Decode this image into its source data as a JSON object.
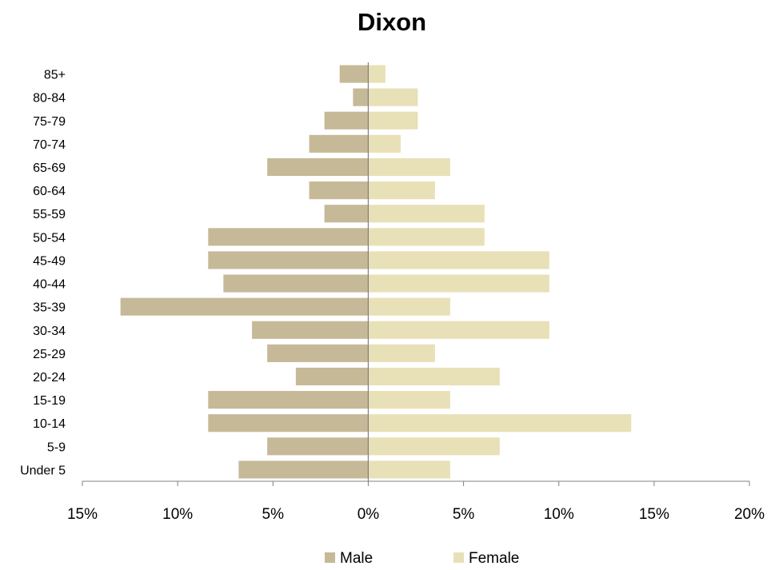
{
  "chart_data": {
    "type": "bar",
    "orientation": "horizontal",
    "title": "Dixon",
    "xlabel": "",
    "ylabel": "",
    "categories": [
      "Under 5",
      "5-9",
      "10-14",
      "15-19",
      "20-24",
      "25-29",
      "30-34",
      "35-39",
      "40-44",
      "45-49",
      "50-54",
      "55-59",
      "60-64",
      "65-69",
      "70-74",
      "75-79",
      "80-84",
      "85+"
    ],
    "series": [
      {
        "name": "Male",
        "color": "#c6b998",
        "values": [
          6.8,
          5.3,
          8.4,
          8.4,
          3.8,
          5.3,
          6.1,
          13.0,
          7.6,
          8.4,
          8.4,
          2.3,
          3.1,
          5.3,
          3.1,
          2.3,
          0.8,
          1.5
        ]
      },
      {
        "name": "Female",
        "color": "#e8e0b7",
        "values": [
          4.3,
          6.9,
          13.8,
          4.3,
          6.9,
          3.5,
          9.5,
          4.3,
          9.5,
          9.5,
          6.1,
          6.1,
          3.5,
          4.3,
          1.7,
          2.6,
          2.6,
          0.9
        ]
      }
    ],
    "x_ticks": [
      "15%",
      "10%",
      "5%",
      "0%",
      "5%",
      "10%",
      "15%",
      "20%"
    ],
    "xlim": [
      -15,
      20
    ],
    "grid": false,
    "legend_position": "bottom"
  }
}
